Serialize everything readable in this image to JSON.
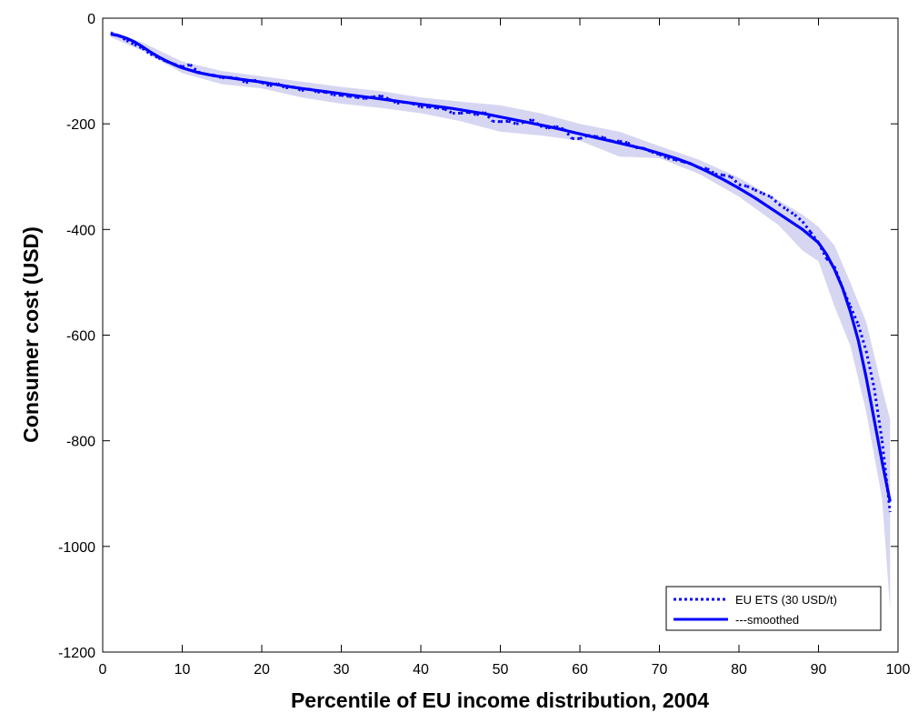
{
  "chart_data": {
    "type": "line",
    "title": "",
    "xlabel": "Percentile of EU income distribution, 2004",
    "ylabel": "Consumer cost (USD)",
    "xlim": [
      0,
      100
    ],
    "ylim": [
      -1200,
      0
    ],
    "xticks": [
      0,
      10,
      20,
      30,
      40,
      50,
      60,
      70,
      80,
      90,
      100
    ],
    "yticks": [
      0,
      -200,
      -400,
      -600,
      -800,
      -1000,
      -1200
    ],
    "grid": false,
    "legend_position": "bottom-right",
    "colors": {
      "series": "#0000ff",
      "band": "#d6d6f2",
      "axis": "#000000"
    },
    "series": [
      {
        "name": "EU ETS (30 USD/t)",
        "style": "dotted",
        "x": [
          1,
          2,
          3,
          4,
          5,
          6,
          7,
          8,
          9,
          10,
          11,
          12,
          13,
          14,
          15,
          16,
          17,
          18,
          19,
          20,
          21,
          22,
          23,
          24,
          25,
          26,
          27,
          28,
          29,
          30,
          31,
          32,
          33,
          34,
          35,
          36,
          37,
          38,
          39,
          40,
          41,
          42,
          43,
          44,
          45,
          46,
          47,
          48,
          49,
          50,
          51,
          52,
          53,
          54,
          55,
          56,
          57,
          58,
          59,
          60,
          61,
          62,
          63,
          64,
          65,
          66,
          67,
          68,
          69,
          70,
          71,
          72,
          73,
          74,
          75,
          76,
          77,
          78,
          79,
          80,
          81,
          82,
          83,
          84,
          85,
          86,
          87,
          88,
          89,
          90,
          91,
          92,
          93,
          94,
          95,
          96,
          97,
          98,
          99
        ],
        "values": [
          -28,
          -33,
          -42,
          -50,
          -57,
          -68,
          -75,
          -82,
          -87,
          -92,
          -88,
          -102,
          -106,
          -108,
          -113,
          -112,
          -114,
          -122,
          -117,
          -122,
          -128,
          -124,
          -132,
          -130,
          -137,
          -134,
          -140,
          -140,
          -145,
          -146,
          -148,
          -150,
          -152,
          -149,
          -147,
          -153,
          -161,
          -159,
          -162,
          -168,
          -168,
          -170,
          -172,
          -180,
          -180,
          -178,
          -183,
          -178,
          -195,
          -196,
          -195,
          -200,
          -197,
          -192,
          -204,
          -208,
          -205,
          -210,
          -228,
          -228,
          -222,
          -224,
          -226,
          -233,
          -233,
          -236,
          -245,
          -246,
          -253,
          -258,
          -265,
          -268,
          -272,
          -276,
          -283,
          -285,
          -295,
          -297,
          -300,
          -315,
          -318,
          -325,
          -332,
          -338,
          -352,
          -362,
          -372,
          -385,
          -405,
          -425,
          -455,
          -470,
          -510,
          -545,
          -580,
          -630,
          -700,
          -800,
          -935
        ]
      },
      {
        "name": "---smoothed",
        "style": "solid",
        "x": [
          1,
          2,
          3,
          4,
          5,
          6,
          7,
          8,
          9,
          10,
          12,
          14,
          16,
          18,
          20,
          22,
          24,
          26,
          28,
          30,
          32,
          34,
          36,
          38,
          40,
          42,
          44,
          46,
          48,
          50,
          52,
          54,
          56,
          58,
          60,
          62,
          64,
          66,
          68,
          70,
          72,
          74,
          76,
          78,
          80,
          82,
          84,
          86,
          88,
          90,
          91,
          92,
          93,
          94,
          95,
          96,
          97,
          98,
          99
        ],
        "values": [
          -30,
          -33,
          -38,
          -45,
          -54,
          -64,
          -73,
          -81,
          -88,
          -94,
          -103,
          -109,
          -113,
          -117,
          -121,
          -126,
          -131,
          -135,
          -139,
          -143,
          -147,
          -151,
          -155,
          -159,
          -163,
          -167,
          -171,
          -176,
          -181,
          -187,
          -193,
          -199,
          -205,
          -212,
          -219,
          -226,
          -233,
          -240,
          -247,
          -256,
          -265,
          -276,
          -290,
          -305,
          -322,
          -340,
          -360,
          -380,
          -400,
          -425,
          -447,
          -475,
          -510,
          -555,
          -610,
          -680,
          -760,
          -840,
          -915
        ]
      }
    ],
    "confidence_band": {
      "x": [
        1,
        5,
        10,
        15,
        20,
        25,
        30,
        35,
        40,
        45,
        50,
        55,
        60,
        65,
        70,
        75,
        80,
        85,
        88,
        90,
        92,
        94,
        96,
        98,
        99
      ],
      "upper": [
        -24,
        -46,
        -82,
        -100,
        -110,
        -120,
        -130,
        -138,
        -150,
        -158,
        -165,
        -180,
        -200,
        -215,
        -242,
        -268,
        -302,
        -345,
        -372,
        -395,
        -430,
        -500,
        -575,
        -700,
        -760
      ],
      "lower": [
        -36,
        -62,
        -104,
        -125,
        -133,
        -150,
        -162,
        -170,
        -180,
        -195,
        -215,
        -222,
        -232,
        -262,
        -265,
        -295,
        -338,
        -392,
        -440,
        -460,
        -545,
        -620,
        -745,
        -910,
        -1120
      ]
    }
  }
}
